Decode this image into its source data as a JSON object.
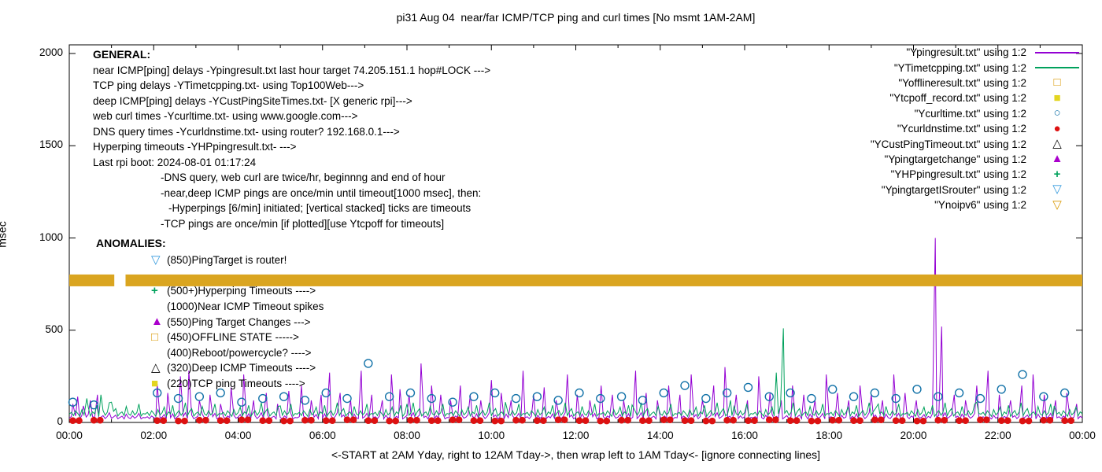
{
  "title": "pi31 Aug 04  near/far ICMP/TCP ping and curl times [No msmt 1AM-2AM]",
  "axes": {
    "y_label": "msec",
    "y_ticks": [
      "0",
      "500",
      "1000",
      "1500",
      "2000"
    ],
    "x_ticks": [
      "00:00",
      "02:00",
      "04:00",
      "06:00",
      "08:00",
      "10:00",
      "12:00",
      "14:00",
      "16:00",
      "18:00",
      "20:00",
      "22:00",
      "00:00"
    ],
    "x_axis_note": "<-START at 2AM Yday, right to 12AM Tday->, then wrap left to 1AM Tday<- [ignore connecting lines]"
  },
  "general": {
    "heading": "GENERAL:",
    "lines": [
      {
        "text": "near ICMP[ping] delays -Ypingresult.txt last hour target 74.205.151.1 hop#LOCK --->",
        "indent": 0
      },
      {
        "text": "TCP ping delays -YTimetcpping.txt- using Top100Web--->",
        "indent": 0
      },
      {
        "text": "deep ICMP[ping] delays -YCustPingSiteTimes.txt- [X generic rpi]--->",
        "indent": 0
      },
      {
        "text": "web curl times -Ycurltime.txt- using www.google.com--->",
        "indent": 0
      },
      {
        "text": "DNS query times -Ycurldnstime.txt- using router? 192.168.0.1--->",
        "indent": 0
      },
      {
        "text": "Hyperping timeouts -YHPpingresult.txt- --->",
        "indent": 0
      },
      {
        "text": "Last rpi boot: 2024-08-01 01:17:24",
        "indent": 0
      },
      {
        "text": "-DNS query, web curl are twice/hr, beginnng and end of hour",
        "indent": 1
      },
      {
        "text": "-near,deep ICMP pings are once/min until timeout[1000 msec], then:",
        "indent": 1
      },
      {
        "text": "-Hyperpings [6/min] initiated; [vertical stacked] ticks are timeouts",
        "indent": 2
      },
      {
        "text": "-TCP pings are once/min [if plotted][use Ytcpoff for timeouts]",
        "indent": 1
      }
    ]
  },
  "anomalies": {
    "heading": "ANOMALIES:",
    "items": [
      {
        "marker": "open-down-triangle",
        "color": "#3399dd",
        "text": "(850)PingTarget is router!"
      },
      {
        "marker": "none",
        "color": "",
        "text": "",
        "spacer": true
      },
      {
        "marker": "plus",
        "color": "#00a15c",
        "text": "(500+)Hyperping Timeouts ---->"
      },
      {
        "marker": "none",
        "color": "",
        "text": "(1000)Near ICMP Timeout spikes"
      },
      {
        "marker": "filled-triangle",
        "color": "#aa00cc",
        "text": "(550)Ping Target Changes --->"
      },
      {
        "marker": "open-square",
        "color": "#d99800",
        "text": "(450)OFFLINE STATE ----->"
      },
      {
        "marker": "none",
        "color": "",
        "text": "(400)Reboot/powercycle? ---->"
      },
      {
        "marker": "open-triangle",
        "color": "#000000",
        "text": "(320)Deep ICMP Timeouts ---->"
      },
      {
        "marker": "filled-square",
        "color": "#e3d520",
        "text": "(220)TCP ping Timeouts ---->"
      }
    ]
  },
  "legend": [
    {
      "label": "\"Ypingresult.txt\" using 1:2",
      "style": "line",
      "color": "#9400d3"
    },
    {
      "label": "\"YTimetcpping.txt\" using 1:2",
      "style": "line",
      "color": "#00a15c"
    },
    {
      "label": "\"Yofflineresult.txt\" using 1:2",
      "style": "open-square",
      "color": "#d99800"
    },
    {
      "label": "\"Ytcpoff_record.txt\" using 1:2",
      "style": "filled-square",
      "color": "#e3d520"
    },
    {
      "label": "\"Ycurltime.txt\" using 1:2",
      "style": "open-circle",
      "color": "#1272a8"
    },
    {
      "label": "\"Ycurldnstime.txt\" using 1:2",
      "style": "filled-circle",
      "color": "#dd1111"
    },
    {
      "label": "\"YCustPingTimeout.txt\" using 1:2",
      "style": "open-triangle",
      "color": "#000000"
    },
    {
      "label": "\"Ypingtargetchange\" using 1:2",
      "style": "filled-triangle",
      "color": "#aa00cc"
    },
    {
      "label": "\"YHPpingresult.txt\" using 1:2",
      "style": "plus",
      "color": "#00a15c"
    },
    {
      "label": "\"YpingtargetISrouter\" using 1:2",
      "style": "open-down-triangle",
      "color": "#3399dd"
    },
    {
      "label": "\"Ynoipv6\" using 1:2",
      "style": "open-down-triangle",
      "color": "#d99800"
    }
  ],
  "chart_data": {
    "type": "line",
    "title": "pi31 Aug 04  near/far ICMP/TCP ping and curl times [No msmt 1AM-2AM]",
    "xlabel": "<-START at 2AM Yday, right to 12AM Tday->, then wrap left to 1AM Tday<- [ignore connecting lines]",
    "ylabel": "msec",
    "xlim_minutes": [
      0,
      1440
    ],
    "ylim": [
      0,
      2000
    ],
    "x_tick_minutes": [
      0,
      120,
      240,
      360,
      480,
      600,
      720,
      840,
      960,
      1080,
      1200,
      1320,
      1440
    ],
    "y_tick_values": [
      0,
      500,
      1000,
      1500,
      2000
    ],
    "grid": false,
    "legend_position": "top-right",
    "series": [
      {
        "name": "Ypingresult.txt",
        "style": "line",
        "color": "#9400d3",
        "baseline": 25,
        "noise": [
          0,
          6,
          -4,
          10,
          2,
          -6,
          14,
          -2,
          4,
          18,
          -5,
          8,
          0,
          22,
          -6,
          3,
          12,
          -4,
          7,
          28,
          -3,
          5,
          15,
          -5,
          2,
          9,
          -6,
          20,
          1,
          -4,
          11,
          -2,
          6,
          24,
          -6,
          2
        ],
        "spikes": [
          [
            5,
            100
          ],
          [
            12,
            140
          ],
          [
            20,
            90
          ],
          [
            30,
            120
          ],
          [
            40,
            150
          ],
          [
            125,
            210
          ],
          [
            140,
            160
          ],
          [
            158,
            250
          ],
          [
            170,
            280
          ],
          [
            185,
            120
          ],
          [
            200,
            150
          ],
          [
            215,
            100
          ],
          [
            230,
            190
          ],
          [
            248,
            260
          ],
          [
            262,
            120
          ],
          [
            280,
            160
          ],
          [
            296,
            100
          ],
          [
            312,
            170
          ],
          [
            330,
            200
          ],
          [
            344,
            120
          ],
          [
            358,
            150
          ],
          [
            370,
            270
          ],
          [
            385,
            160
          ],
          [
            400,
            120
          ],
          [
            415,
            280
          ],
          [
            430,
            150
          ],
          [
            445,
            120
          ],
          [
            458,
            260
          ],
          [
            470,
            180
          ],
          [
            483,
            150
          ],
          [
            500,
            320
          ],
          [
            515,
            200
          ],
          [
            528,
            150
          ],
          [
            542,
            120
          ],
          [
            556,
            200
          ],
          [
            570,
            150
          ],
          [
            585,
            120
          ],
          [
            600,
            230
          ],
          [
            614,
            160
          ],
          [
            628,
            120
          ],
          [
            645,
            280
          ],
          [
            660,
            150
          ],
          [
            675,
            190
          ],
          [
            692,
            120
          ],
          [
            708,
            260
          ],
          [
            722,
            150
          ],
          [
            740,
            120
          ],
          [
            756,
            200
          ],
          [
            772,
            150
          ],
          [
            788,
            120
          ],
          [
            805,
            280
          ],
          [
            820,
            160
          ],
          [
            836,
            120
          ],
          [
            852,
            200
          ],
          [
            868,
            150
          ],
          [
            884,
            260
          ],
          [
            900,
            120
          ],
          [
            916,
            200
          ],
          [
            932,
            300
          ],
          [
            948,
            150
          ],
          [
            964,
            120
          ],
          [
            980,
            250
          ],
          [
            996,
            160
          ],
          [
            1012,
            120
          ],
          [
            1028,
            200
          ],
          [
            1044,
            150
          ],
          [
            1060,
            120
          ],
          [
            1076,
            260
          ],
          [
            1092,
            160
          ],
          [
            1108,
            120
          ],
          [
            1124,
            200
          ],
          [
            1140,
            150
          ],
          [
            1156,
            120
          ],
          [
            1172,
            260
          ],
          [
            1188,
            160
          ],
          [
            1204,
            120
          ],
          [
            1231,
            1000
          ],
          [
            1240,
            520
          ],
          [
            1258,
            150
          ],
          [
            1274,
            120
          ],
          [
            1290,
            200
          ],
          [
            1306,
            280
          ],
          [
            1322,
            150
          ],
          [
            1338,
            120
          ],
          [
            1354,
            200
          ],
          [
            1370,
            260
          ],
          [
            1386,
            150
          ],
          [
            1402,
            120
          ],
          [
            1418,
            160
          ],
          [
            1432,
            100
          ]
        ]
      },
      {
        "name": "YTimetcpping.txt",
        "style": "line",
        "color": "#00a15c",
        "baseline": 45,
        "noise": [
          0,
          10,
          -8,
          18,
          4,
          -12,
          25,
          -4,
          8,
          38,
          -10,
          12,
          2,
          48,
          -12,
          5,
          20,
          -6,
          10,
          62,
          -8,
          15,
          30,
          -10,
          4,
          12,
          -8,
          42,
          2,
          -6,
          18,
          -4,
          8,
          55,
          -10,
          3
        ],
        "spikes": [
          [
            25,
            130
          ],
          [
            45,
            150
          ],
          [
            60,
            110
          ],
          [
            300,
            90
          ],
          [
            480,
            100
          ],
          [
            620,
            110
          ],
          [
            800,
            95
          ],
          [
            940,
            120
          ],
          [
            1005,
            270
          ],
          [
            1015,
            510
          ],
          [
            1150,
            100
          ],
          [
            1290,
            110
          ],
          [
            1400,
            90
          ]
        ]
      },
      {
        "name": "Ycurltime.txt",
        "style": "open-circle",
        "color": "#1272a8",
        "points": [
          [
            5,
            110
          ],
          [
            35,
            95
          ],
          [
            125,
            160
          ],
          [
            155,
            130
          ],
          [
            185,
            140
          ],
          [
            215,
            160
          ],
          [
            245,
            110
          ],
          [
            275,
            130
          ],
          [
            305,
            140
          ],
          [
            335,
            120
          ],
          [
            365,
            160
          ],
          [
            395,
            130
          ],
          [
            425,
            320
          ],
          [
            455,
            140
          ],
          [
            485,
            160
          ],
          [
            515,
            130
          ],
          [
            545,
            110
          ],
          [
            575,
            140
          ],
          [
            605,
            160
          ],
          [
            635,
            130
          ],
          [
            665,
            140
          ],
          [
            695,
            120
          ],
          [
            725,
            160
          ],
          [
            755,
            130
          ],
          [
            785,
            140
          ],
          [
            815,
            120
          ],
          [
            845,
            160
          ],
          [
            875,
            200
          ],
          [
            905,
            130
          ],
          [
            935,
            160
          ],
          [
            965,
            190
          ],
          [
            995,
            140
          ],
          [
            1025,
            160
          ],
          [
            1055,
            130
          ],
          [
            1085,
            180
          ],
          [
            1115,
            140
          ],
          [
            1145,
            160
          ],
          [
            1175,
            130
          ],
          [
            1205,
            180
          ],
          [
            1235,
            140
          ],
          [
            1265,
            160
          ],
          [
            1295,
            130
          ],
          [
            1325,
            180
          ],
          [
            1355,
            260
          ],
          [
            1385,
            140
          ],
          [
            1415,
            160
          ]
        ]
      },
      {
        "name": "Ycurldnstime.txt",
        "style": "filled-circle",
        "color": "#dd1111",
        "points": [
          [
            5,
            10
          ],
          [
            35,
            12
          ],
          [
            125,
            10
          ],
          [
            155,
            8
          ],
          [
            185,
            12
          ],
          [
            215,
            10
          ],
          [
            245,
            14
          ],
          [
            275,
            10
          ],
          [
            305,
            8
          ],
          [
            335,
            12
          ],
          [
            365,
            10
          ],
          [
            395,
            14
          ],
          [
            425,
            10
          ],
          [
            455,
            8
          ],
          [
            485,
            12
          ],
          [
            515,
            10
          ],
          [
            545,
            14
          ],
          [
            575,
            10
          ],
          [
            605,
            8
          ],
          [
            635,
            12
          ],
          [
            665,
            10
          ],
          [
            695,
            14
          ],
          [
            725,
            10
          ],
          [
            755,
            8
          ],
          [
            785,
            12
          ],
          [
            815,
            10
          ],
          [
            845,
            14
          ],
          [
            875,
            10
          ],
          [
            905,
            8
          ],
          [
            935,
            12
          ],
          [
            965,
            10
          ],
          [
            995,
            14
          ],
          [
            1025,
            10
          ],
          [
            1055,
            8
          ],
          [
            1085,
            12
          ],
          [
            1115,
            10
          ],
          [
            1145,
            14
          ],
          [
            1175,
            10
          ],
          [
            1205,
            8
          ],
          [
            1235,
            12
          ],
          [
            1265,
            10
          ],
          [
            1295,
            14
          ],
          [
            1325,
            10
          ],
          [
            1355,
            8
          ],
          [
            1385,
            12
          ],
          [
            1415,
            10
          ]
        ]
      },
      {
        "name": "Ynoipv6",
        "style": "band",
        "color": "#DAA520",
        "value": 770,
        "half_width_msec": 32,
        "segments_minutes": [
          [
            0,
            64
          ],
          [
            80,
            1440
          ]
        ]
      }
    ]
  }
}
